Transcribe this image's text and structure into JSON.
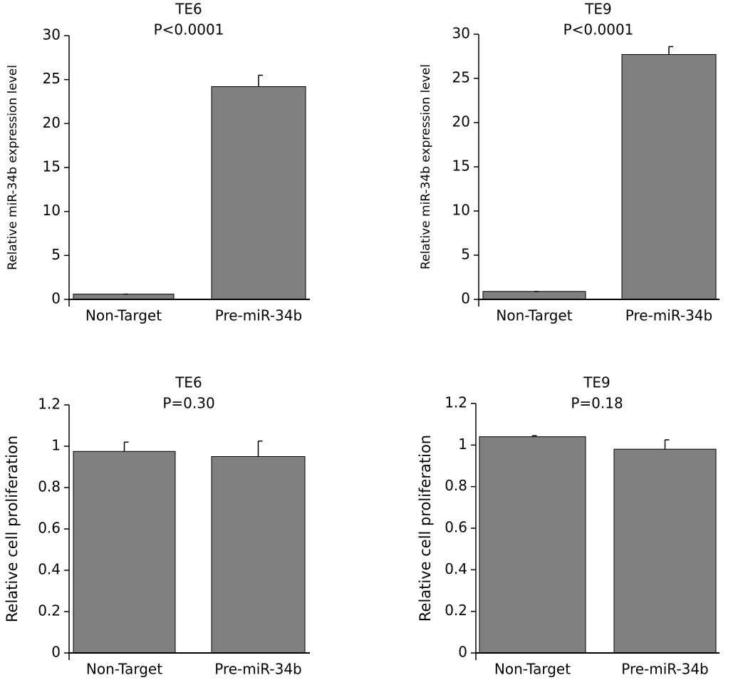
{
  "chart_data": [
    {
      "type": "bar",
      "title": "TE6",
      "subtitle": "P<0.0001",
      "y_label": "Relative miR-34b expression level",
      "categories": [
        "Non-Target",
        "Pre-miR-34b"
      ],
      "values": [
        0.6,
        24.2
      ],
      "errors": [
        0,
        1.3
      ],
      "color": "#808080",
      "ylim": [
        0,
        30
      ],
      "yticks": [
        0,
        5,
        10,
        15,
        20,
        25,
        30
      ]
    },
    {
      "type": "bar",
      "title": "TE9",
      "subtitle": "P<0.0001",
      "y_label": "Relative miR-34b expression level",
      "categories": [
        "Non-Target",
        "Pre-miR-34b"
      ],
      "values": [
        0.9,
        27.7
      ],
      "errors": [
        0,
        0.9
      ],
      "color": "#808080",
      "ylim": [
        0,
        30
      ],
      "yticks": [
        0,
        5,
        10,
        15,
        20,
        25,
        30
      ]
    },
    {
      "type": "bar",
      "title": "TE6",
      "subtitle": "P=0.30",
      "y_label": "Relative cell proliferation",
      "categories": [
        "Non-Target",
        "Pre-miR-34b"
      ],
      "values": [
        0.975,
        0.95
      ],
      "errors": [
        0.045,
        0.075
      ],
      "color": "#808080",
      "ylim": [
        0,
        1.2
      ],
      "yticks": [
        0,
        0.2,
        0.4,
        0.6,
        0.8,
        1,
        1.2
      ]
    },
    {
      "type": "bar",
      "title": "TE9",
      "subtitle": "P=0.18",
      "y_label": "Relative cell proliferation",
      "categories": [
        "Non-Target",
        "Pre-miR-34b"
      ],
      "values": [
        1.04,
        0.98
      ],
      "errors": [
        0.005,
        0.045
      ],
      "color": "#808080",
      "ylim": [
        0,
        1.2
      ],
      "yticks": [
        0,
        0.2,
        0.4,
        0.6,
        0.8,
        1,
        1.2
      ]
    }
  ]
}
